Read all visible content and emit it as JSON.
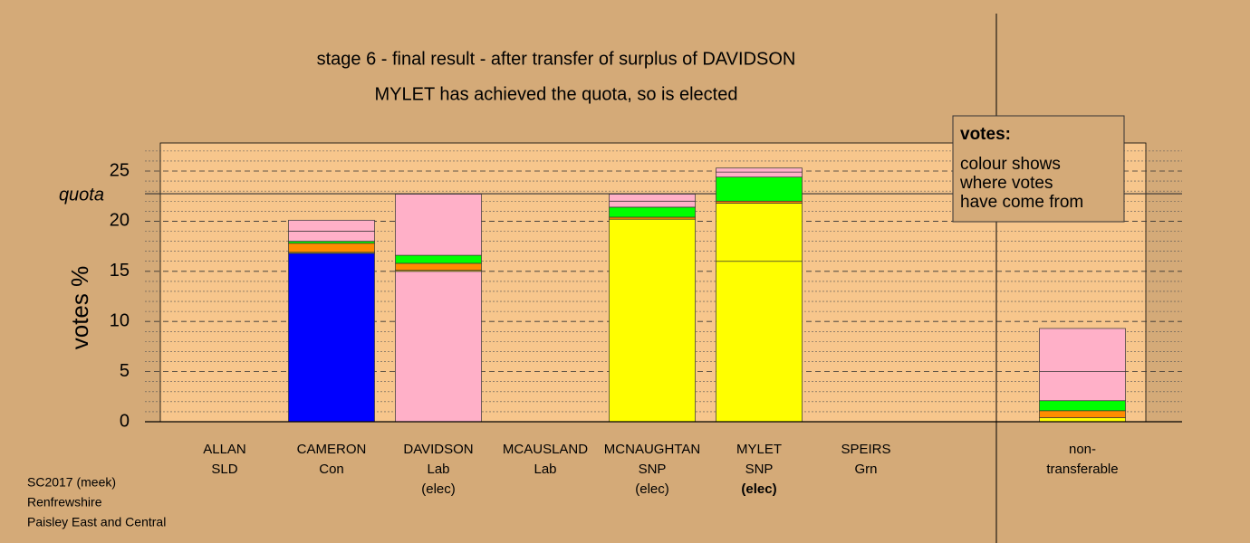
{
  "chart_data": {
    "type": "stacked_bar",
    "title": "stage 6 - final result - after transfer of surplus of DAVIDSON",
    "subtitle": "MYLET has achieved the quota, so is elected",
    "ylabel": "votes %",
    "quota": {
      "label": "quota",
      "value": 22.74
    },
    "legend_box": {
      "title": "votes:",
      "lines": [
        "colour shows",
        "where votes",
        "have come from"
      ]
    },
    "footer": [
      "SC2017 (meek)",
      "Renfrewshire",
      "Paisley East and Central"
    ],
    "categories": [
      [
        "ALLAN",
        "SLD"
      ],
      [
        "CAMERON",
        "Con"
      ],
      [
        "DAVIDSON",
        "Lab"
      ],
      [
        "MCAUSLAND",
        "Lab"
      ],
      [
        "MCNAUGHTAN",
        "SNP"
      ],
      [
        "MYLET",
        "SNP"
      ],
      [
        "SPEIRS",
        "Grn"
      ],
      [
        "non-",
        "transferable"
      ]
    ],
    "status": [
      null,
      null,
      "(elec)",
      null,
      "(elec)",
      "(elec)",
      null,
      null
    ],
    "series": [
      {
        "colors": [
          "#ff8c00",
          "#0000ff",
          "#ffb0c8",
          "#ffb0c8",
          "#ffff00",
          "#ffff00",
          "#00ff00",
          "#ffff00"
        ],
        "values": [
          0,
          16.8,
          15.0,
          0,
          20.2,
          16.0,
          0,
          0
        ]
      },
      {
        "color": "#ffff00",
        "values": [
          0,
          0.1,
          0.1,
          0,
          0,
          5.8,
          0,
          0.4
        ]
      },
      {
        "color": "#ff8c00",
        "values": [
          0,
          0.9,
          0.7,
          0,
          0.2,
          0.2,
          0,
          0.7
        ]
      },
      {
        "color": "#00ff00",
        "values": [
          0,
          0.2,
          0.8,
          0,
          1.0,
          2.4,
          0,
          1.0
        ]
      },
      {
        "color": "#ffb0c8",
        "values": [
          0,
          1.0,
          6.1,
          0,
          0.6,
          0.5,
          0,
          2.9
        ]
      },
      {
        "color": "#ffb0c8",
        "values": [
          0,
          1.1,
          0,
          0,
          0.7,
          0.4,
          0,
          4.3
        ]
      }
    ],
    "ylim": [
      0,
      27.8
    ],
    "yticks": [
      0,
      5,
      10,
      15,
      20,
      25
    ],
    "yminorticks": [
      1,
      2,
      3,
      4,
      6,
      7,
      8,
      9,
      11,
      12,
      13,
      14,
      16,
      17,
      18,
      19,
      21,
      22,
      23,
      24,
      26,
      27
    ],
    "grid": true
  }
}
